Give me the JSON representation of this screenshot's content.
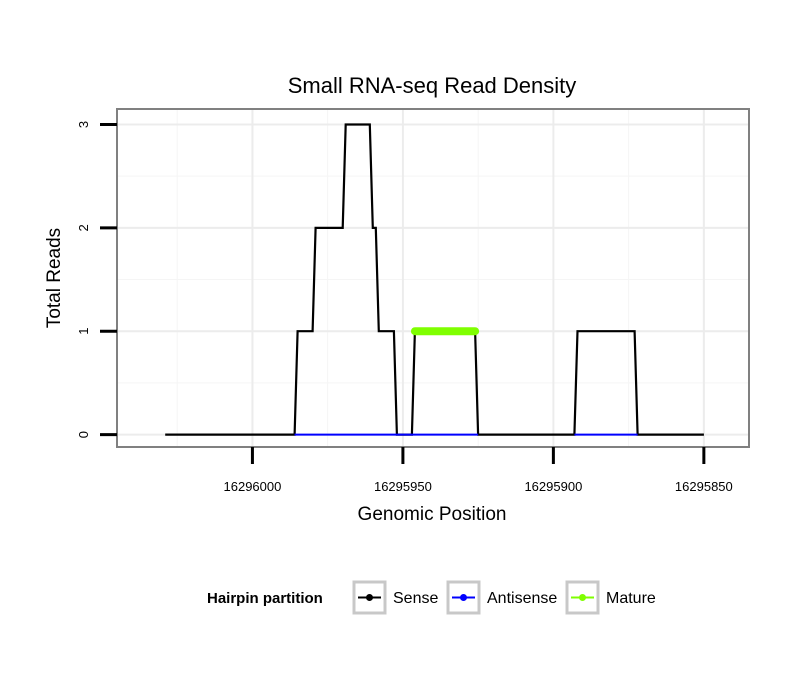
{
  "chart_data": {
    "type": "line",
    "title": "Small RNA-seq Read Density",
    "xlabel": "Genomic Position",
    "ylabel": "Total Reads",
    "xlim": [
      16296045,
      16295835
    ],
    "ylim": [
      -0.12,
      3.15
    ],
    "x_ticks": [
      16296000,
      16295950,
      16295900,
      16295850
    ],
    "x_tick_labels": [
      "16296000",
      "16295950",
      "16295900",
      "16295850"
    ],
    "y_ticks": [
      0,
      1,
      2,
      3
    ],
    "y_tick_labels": [
      "0",
      "1",
      "2",
      "3"
    ],
    "grid": true,
    "x_reversed": true,
    "series": [
      {
        "name": "Sense",
        "color": "#000000",
        "points": [
          [
            16296029,
            0
          ],
          [
            16295986,
            0
          ],
          [
            16295985,
            1
          ],
          [
            16295980,
            1
          ],
          [
            16295979,
            2
          ],
          [
            16295970,
            2
          ],
          [
            16295969,
            3
          ],
          [
            16295961,
            3
          ],
          [
            16295960,
            2
          ],
          [
            16295959,
            2
          ],
          [
            16295958,
            1
          ],
          [
            16295953,
            1
          ],
          [
            16295952,
            0
          ],
          [
            16295947,
            0
          ],
          [
            16295946,
            1
          ],
          [
            16295926,
            1
          ],
          [
            16295925,
            0
          ],
          [
            16295893,
            0
          ],
          [
            16295892,
            1
          ],
          [
            16295873,
            1
          ],
          [
            16295872,
            0
          ],
          [
            16295850,
            0
          ]
        ]
      },
      {
        "name": "Antisense",
        "color": "#0000ff",
        "points": [
          [
            16295986,
            0
          ],
          [
            16295925,
            0
          ],
          [
            16295893,
            0
          ],
          [
            16295872,
            0
          ]
        ]
      },
      {
        "name": "Mature",
        "color": "#7fff00",
        "points": [
          [
            16295946,
            1
          ],
          [
            16295926,
            1
          ]
        ]
      }
    ],
    "legend": {
      "title": "Hairpin partition",
      "position": "bottom",
      "items": [
        {
          "label": "Sense",
          "color": "#000000"
        },
        {
          "label": "Antisense",
          "color": "#0000ff"
        },
        {
          "label": "Mature",
          "color": "#7fff00"
        }
      ]
    }
  }
}
